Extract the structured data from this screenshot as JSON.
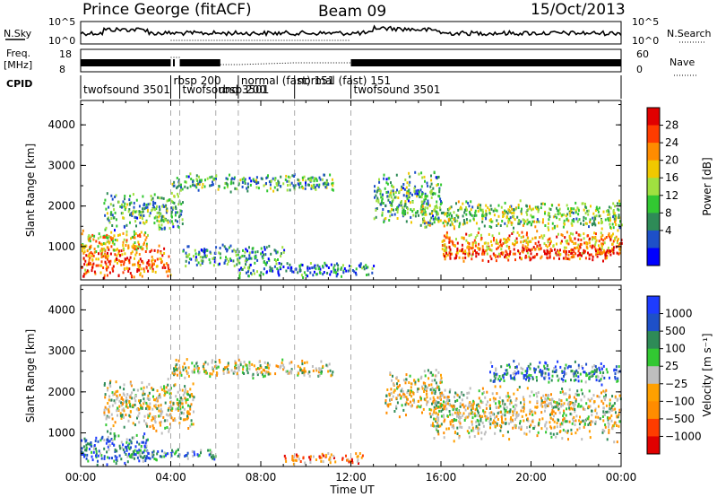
{
  "header": {
    "station": "Prince George (fitACF)",
    "beam": "Beam 09",
    "date": "15/Oct/2013"
  },
  "status_panels": {
    "nsky_label": "N.Sky",
    "nsky_ticks": [
      "10^5",
      "10^0"
    ],
    "nsearch_label": "N.Search",
    "freq_label_line1": "Freq.",
    "freq_label_line2": "[MHz]",
    "freq_ticks": [
      "18",
      "8"
    ],
    "nave_label": "Nave",
    "nave_ticks": [
      "60",
      "0"
    ],
    "cpid_label": "CPID",
    "cpid_segments": [
      {
        "name": "twofsound  3501",
        "start_hr": 0.0,
        "end_hr": 4.0,
        "row": 1
      },
      {
        "name": "rbsp  200",
        "start_hr": 4.0,
        "end_hr": 4.4,
        "row": 0
      },
      {
        "name": "twofsound  3501",
        "start_hr": 4.4,
        "end_hr": 6.0,
        "row": 1
      },
      {
        "name": "rbsp  200",
        "start_hr": 6.0,
        "end_hr": 7.0,
        "row": 1
      },
      {
        "name": "normal  (fast)  151",
        "start_hr": 7.0,
        "end_hr": 9.5,
        "row": 0
      },
      {
        "name": "normal  (fast)  151",
        "start_hr": 9.5,
        "end_hr": 12.0,
        "row": 0
      },
      {
        "name": "twofsound  3501",
        "start_hr": 12.0,
        "end_hr": 24.0,
        "row": 1
      }
    ],
    "cpid_boundaries_hr": [
      4.0,
      4.4,
      6.0,
      7.0,
      9.5,
      12.0
    ]
  },
  "chart_data": [
    {
      "type": "heatmap",
      "title": "Power",
      "xlabel": "",
      "ylabel": "Slant Range [km]",
      "xlim": [
        0,
        24
      ],
      "ylim": [
        180,
        4600
      ],
      "yticks": [
        1000,
        2000,
        3000,
        4000
      ],
      "colorbar_label": "Power [dB]",
      "colorbar_ticks": [
        "28",
        "24",
        "20",
        "16",
        "12",
        "8",
        "4"
      ],
      "colorbar_colors": [
        "#e00000",
        "#ff3c00",
        "#ff8c00",
        "#f0c800",
        "#a0e040",
        "#32c832",
        "#2e8b57",
        "#1e50c8",
        "#0000ff"
      ],
      "bands": [
        {
          "start_hr": 0.0,
          "end_hr": 4.0,
          "r_center": 650,
          "r_width": 450,
          "level": 0.8
        },
        {
          "start_hr": 0.0,
          "end_hr": 3.0,
          "r_center": 1150,
          "r_width": 350,
          "level": 0.6
        },
        {
          "start_hr": 1.0,
          "end_hr": 4.5,
          "r_center": 1900,
          "r_width": 500,
          "level": 0.35
        },
        {
          "start_hr": 4.0,
          "end_hr": 11.2,
          "r_center": 2600,
          "r_width": 250,
          "level": 0.35
        },
        {
          "start_hr": 4.5,
          "end_hr": 9.0,
          "r_center": 800,
          "r_width": 300,
          "level": 0.3
        },
        {
          "start_hr": 7.0,
          "end_hr": 13.0,
          "r_center": 450,
          "r_width": 200,
          "level": 0.25
        },
        {
          "start_hr": 13.0,
          "end_hr": 16.0,
          "r_center": 2200,
          "r_width": 700,
          "level": 0.35
        },
        {
          "start_hr": 15.0,
          "end_hr": 24.0,
          "r_center": 1800,
          "r_width": 400,
          "level": 0.45
        },
        {
          "start_hr": 16.0,
          "end_hr": 24.0,
          "r_center": 1100,
          "r_width": 350,
          "level": 0.7
        },
        {
          "start_hr": 16.0,
          "end_hr": 24.0,
          "r_center": 850,
          "r_width": 200,
          "level": 0.9
        }
      ]
    },
    {
      "type": "heatmap",
      "title": "Velocity",
      "xlabel": "Time UT",
      "ylabel": "Slant Range [km]",
      "xlim": [
        0,
        24
      ],
      "ylim": [
        180,
        4600
      ],
      "yticks": [
        1000,
        2000,
        3000,
        4000
      ],
      "xticks": [
        "00:00",
        "04:00",
        "08:00",
        "12:00",
        "16:00",
        "20:00",
        "00:00"
      ],
      "colorbar_label": "Velocity  [m s⁻¹]",
      "colorbar_ticks": [
        "1000",
        "500",
        "100",
        "25",
        "−25",
        "−100",
        "−500",
        "−1000"
      ],
      "colorbar_colors": [
        "#1e3cff",
        "#1e50c8",
        "#2e8b57",
        "#32c832",
        "#bebebe",
        "#ffa000",
        "#ff8c00",
        "#ff3c00",
        "#e00000"
      ],
      "bands": [
        {
          "start_hr": 0.0,
          "end_hr": 3.0,
          "r_center": 650,
          "r_width": 450,
          "level": 0.8
        },
        {
          "start_hr": 2.0,
          "end_hr": 6.0,
          "r_center": 500,
          "r_width": 150,
          "level": 0.75
        },
        {
          "start_hr": 1.0,
          "end_hr": 5.0,
          "r_center": 1700,
          "r_width": 700,
          "level": 0.5
        },
        {
          "start_hr": 4.0,
          "end_hr": 11.2,
          "r_center": 2600,
          "r_width": 250,
          "level": 0.5
        },
        {
          "start_hr": 9.0,
          "end_hr": 12.5,
          "r_center": 400,
          "r_width": 150,
          "level": 0.3
        },
        {
          "start_hr": 13.5,
          "end_hr": 16.0,
          "r_center": 2000,
          "r_width": 600,
          "level": 0.5
        },
        {
          "start_hr": 15.5,
          "end_hr": 24.0,
          "r_center": 1500,
          "r_width": 700,
          "level": 0.5
        },
        {
          "start_hr": 18.0,
          "end_hr": 24.0,
          "r_center": 2500,
          "r_width": 300,
          "level": 0.75
        }
      ]
    }
  ]
}
